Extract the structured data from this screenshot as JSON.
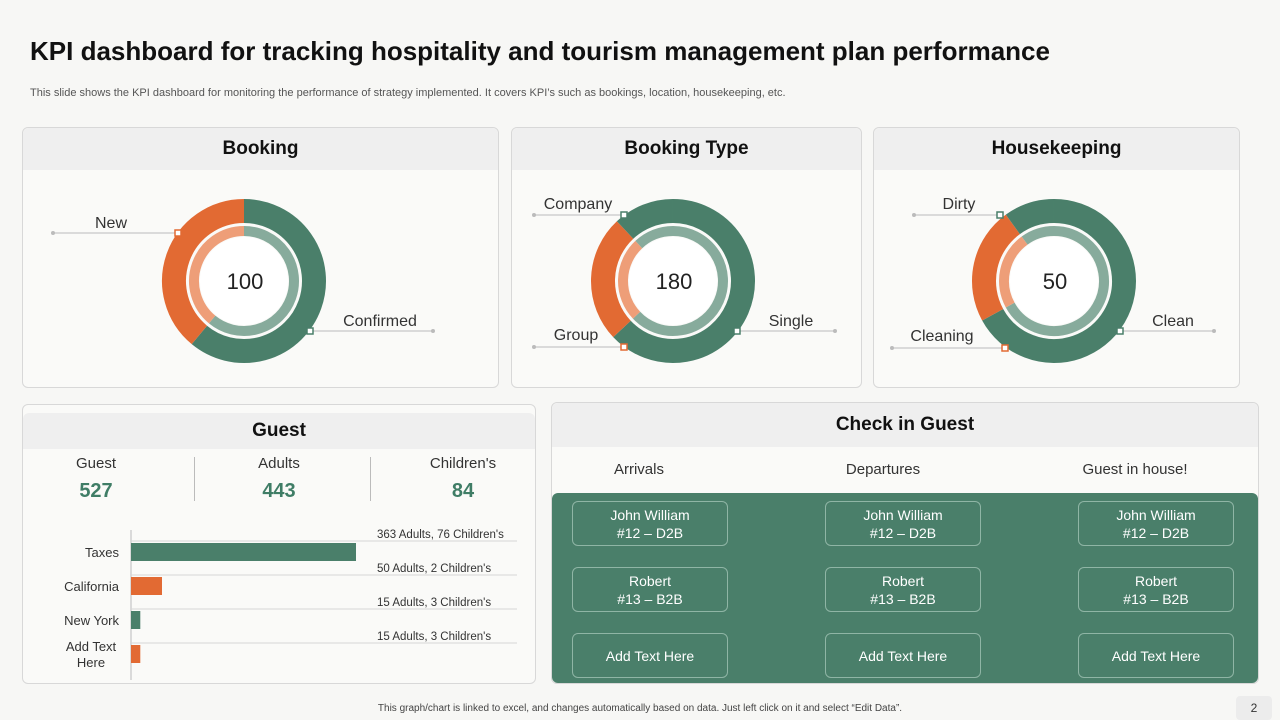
{
  "title": "KPI dashboard for tracking hospitality and tourism management plan performance",
  "subtitle": "This slide shows the KPI dashboard for monitoring the performance of strategy implemented. It covers KPI’s such as bookings, location, housekeeping, etc.",
  "colors": {
    "green": "#4a7f6a",
    "orange": "#e26a33",
    "inner_green": "#87ab9c",
    "inner_orange": "#ee9e78"
  },
  "booking": {
    "title": "Booking",
    "center": "100",
    "labels": {
      "orange": "New",
      "green": "Confirmed"
    },
    "orange_fraction": 0.39
  },
  "booking_type": {
    "title": "Booking Type",
    "center": "180",
    "labels": {
      "green_top": "Company",
      "orange": "Group",
      "green": "Single"
    },
    "orange_fraction": 0.25,
    "orange_start_fraction": 0.63
  },
  "housekeeping": {
    "title": "Housekeeping",
    "center": "50",
    "labels": {
      "green_top": "Dirty",
      "orange": "Cleaning",
      "green": "Clean"
    },
    "orange_fraction": 0.23,
    "orange_start_fraction": 0.67
  },
  "guest": {
    "title": "Guest",
    "stats": [
      {
        "label": "Guest",
        "value": "527"
      },
      {
        "label": "Adults",
        "value": "443"
      },
      {
        "label": "Children's",
        "value": "84"
      }
    ]
  },
  "chart_data": {
    "type": "bar",
    "orientation": "horizontal",
    "categories": [
      "Taxes",
      "California",
      "New York",
      "Add Text Here"
    ],
    "values": [
      363,
      50,
      15,
      15
    ],
    "data_labels": [
      "363 Adults, 76 Children's",
      "50 Adults, 2 Children's",
      "15 Adults, 3 Children's",
      "15 Adults, 3 Children's"
    ],
    "bar_colors": [
      "#4a7f6a",
      "#e26a33",
      "#4a7f6a",
      "#e26a33"
    ]
  },
  "checkin": {
    "title": "Check in Guest",
    "columns": [
      "Arrivals",
      "Departures",
      "Guest in house!"
    ],
    "cards": [
      {
        "l1": "John William",
        "l2": "#12 – D2B"
      },
      {
        "l1": "Robert",
        "l2": "#13 – B2B"
      },
      {
        "l1": "Add Text Here",
        "l2": ""
      }
    ]
  },
  "footer": "This graph/chart is linked to excel, and changes automatically based on data. Just left click on it and select “Edit Data”.",
  "page_number": "2"
}
